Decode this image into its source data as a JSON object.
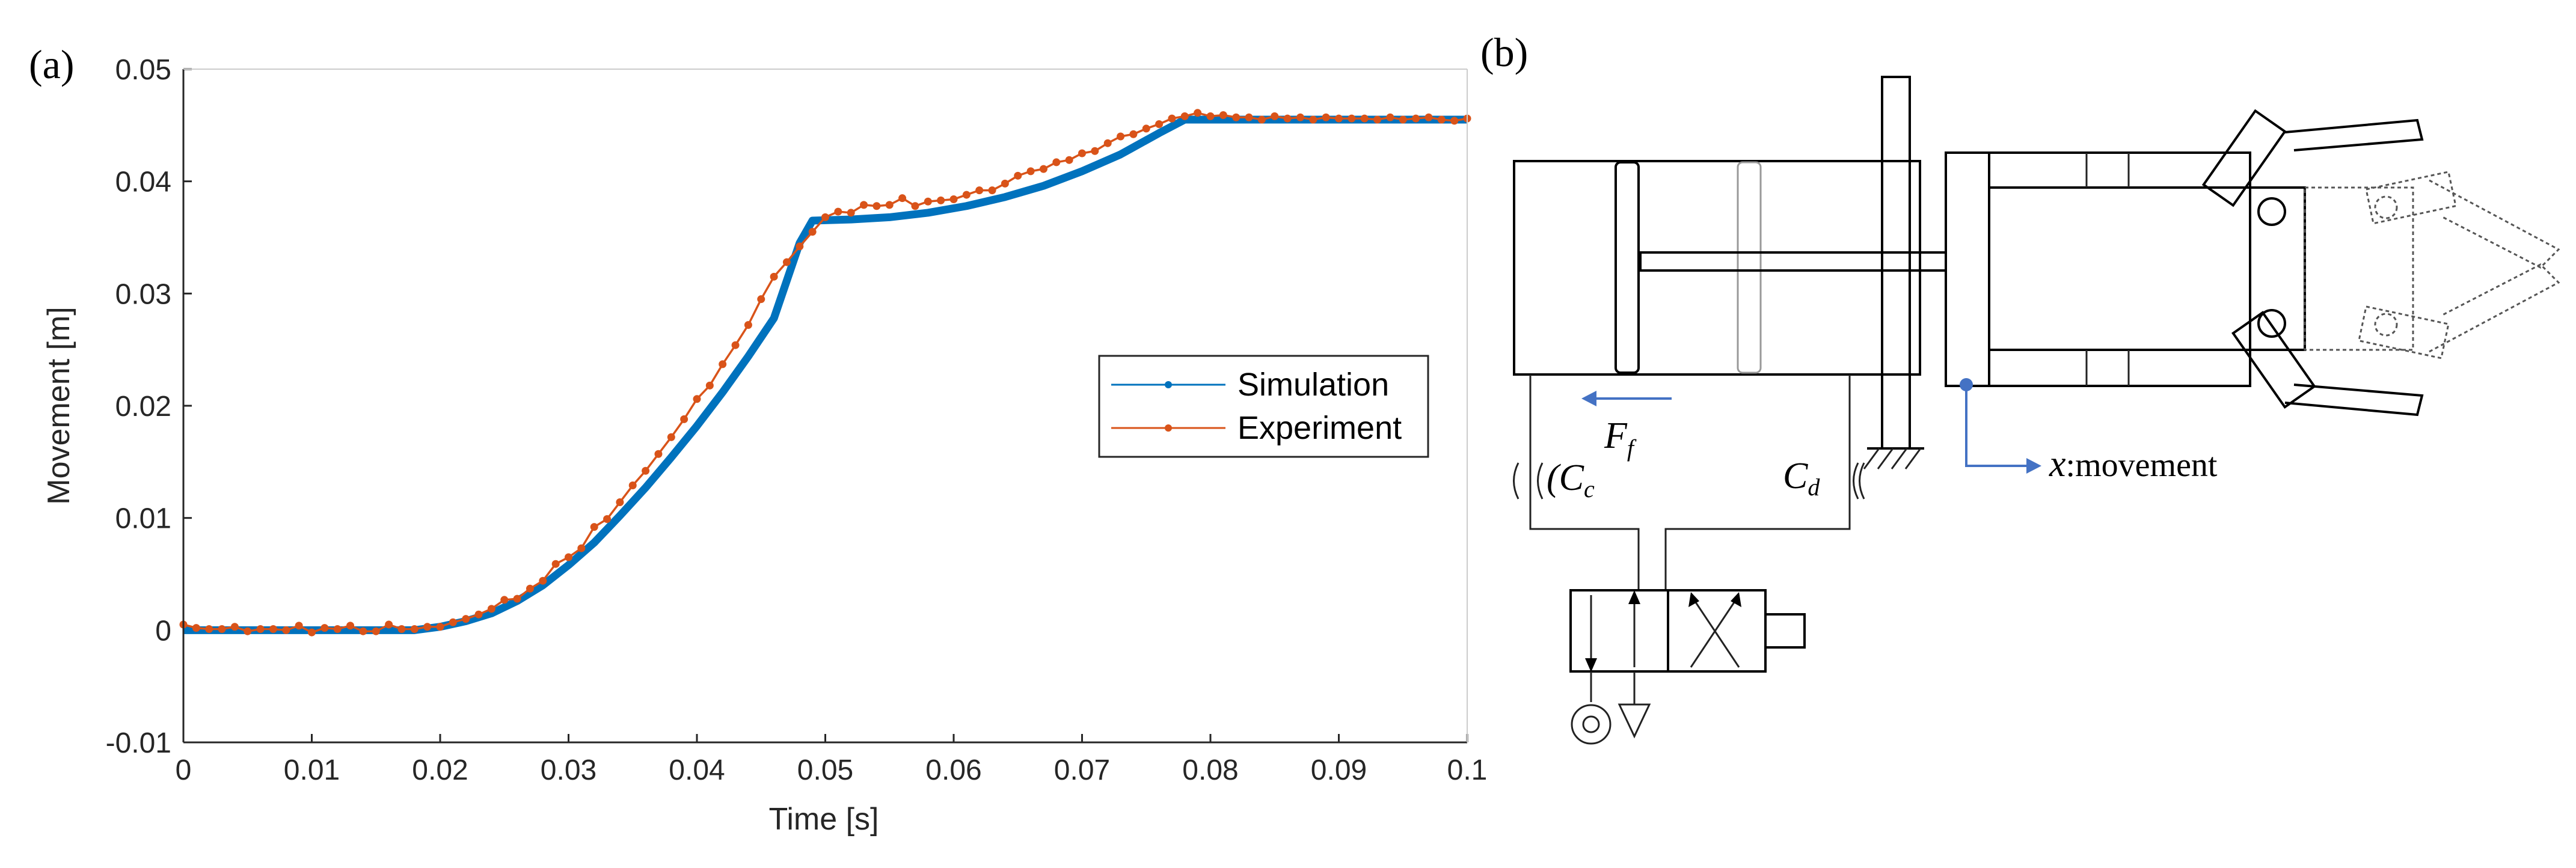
{
  "panel_a_label": "(a)",
  "panel_b_label": "(b)",
  "chart_data": {
    "type": "line",
    "xlabel": "Time [s]",
    "ylabel": "Movement [m]",
    "xlim": [
      0,
      0.1
    ],
    "ylim": [
      -0.01,
      0.05
    ],
    "xticks": [
      "0",
      "0.01",
      "0.02",
      "0.03",
      "0.04",
      "0.05",
      "0.06",
      "0.07",
      "0.08",
      "0.09",
      "0.1"
    ],
    "yticks": [
      "-0.01",
      "0",
      "0.01",
      "0.02",
      "0.03",
      "0.04",
      "0.05"
    ],
    "grid": false,
    "legend_position": "right-middle",
    "series": [
      {
        "name": "Simulation",
        "color": "#0072BD",
        "x": [
          0,
          0.018,
          0.02,
          0.022,
          0.024,
          0.026,
          0.028,
          0.03,
          0.032,
          0.034,
          0.036,
          0.038,
          0.04,
          0.042,
          0.044,
          0.046,
          0.048,
          0.049,
          0.052,
          0.055,
          0.058,
          0.061,
          0.064,
          0.067,
          0.07,
          0.073,
          0.076,
          0.078,
          0.085,
          0.09,
          0.1
        ],
        "y": [
          0,
          0,
          0.0003,
          0.0008,
          0.0015,
          0.0026,
          0.004,
          0.0058,
          0.0078,
          0.0102,
          0.0127,
          0.0154,
          0.0182,
          0.0212,
          0.0244,
          0.0278,
          0.0345,
          0.0365,
          0.0366,
          0.0368,
          0.0372,
          0.0378,
          0.0386,
          0.0396,
          0.0409,
          0.0424,
          0.0443,
          0.0455,
          0.0455,
          0.0455,
          0.0455
        ]
      },
      {
        "name": "Experiment",
        "color": "#D95319",
        "x": [
          0,
          0.001,
          0.002,
          0.003,
          0.004,
          0.005,
          0.006,
          0.007,
          0.008,
          0.009,
          0.01,
          0.011,
          0.012,
          0.013,
          0.014,
          0.015,
          0.016,
          0.017,
          0.018,
          0.019,
          0.02,
          0.021,
          0.022,
          0.023,
          0.024,
          0.025,
          0.026,
          0.027,
          0.028,
          0.029,
          0.03,
          0.031,
          0.032,
          0.033,
          0.034,
          0.035,
          0.036,
          0.037,
          0.038,
          0.039,
          0.04,
          0.041,
          0.042,
          0.043,
          0.044,
          0.045,
          0.046,
          0.047,
          0.048,
          0.049,
          0.05,
          0.051,
          0.052,
          0.053,
          0.054,
          0.055,
          0.056,
          0.057,
          0.058,
          0.059,
          0.06,
          0.061,
          0.062,
          0.063,
          0.064,
          0.065,
          0.066,
          0.067,
          0.068,
          0.069,
          0.07,
          0.071,
          0.072,
          0.073,
          0.074,
          0.075,
          0.076,
          0.077,
          0.078,
          0.079,
          0.08,
          0.081,
          0.082,
          0.083,
          0.084,
          0.085,
          0.086,
          0.087,
          0.088,
          0.089,
          0.09,
          0.091,
          0.092,
          0.093,
          0.094,
          0.095,
          0.096,
          0.097,
          0.098,
          0.099,
          0.1
        ],
        "y": [
          0.0005,
          0.0002,
          0.0001,
          0.0001,
          0.0003,
          -0.0001,
          0.0001,
          0.0001,
          0,
          0.0004,
          -0.0002,
          0.0002,
          0.0001,
          0.0004,
          -0.0001,
          -0.0001,
          0.0005,
          0.0001,
          0.0001,
          0.0003,
          0.0003,
          0.0007,
          0.001,
          0.0014,
          0.0019,
          0.0027,
          0.0028,
          0.0037,
          0.0044,
          0.0059,
          0.0065,
          0.0073,
          0.0092,
          0.0099,
          0.0114,
          0.0129,
          0.0142,
          0.0157,
          0.0172,
          0.0188,
          0.0206,
          0.0218,
          0.0237,
          0.0254,
          0.0272,
          0.0295,
          0.0315,
          0.0328,
          0.0342,
          0.0355,
          0.0368,
          0.0373,
          0.0372,
          0.0379,
          0.0378,
          0.0379,
          0.0385,
          0.0378,
          0.0382,
          0.0383,
          0.0384,
          0.0388,
          0.0392,
          0.0392,
          0.0398,
          0.0405,
          0.0409,
          0.0411,
          0.0417,
          0.0419,
          0.0425,
          0.0427,
          0.0434,
          0.044,
          0.0442,
          0.0447,
          0.0451,
          0.0456,
          0.0458,
          0.0461,
          0.0458,
          0.0459,
          0.0457,
          0.0457,
          0.0455,
          0.0458,
          0.0456,
          0.0457,
          0.0455,
          0.0457,
          0.0456,
          0.0456,
          0.0456,
          0.0455,
          0.0457,
          0.0455,
          0.0456,
          0.0457,
          0.0455,
          0.0454,
          0.0456
        ]
      }
    ]
  },
  "diagram": {
    "force_label": "F",
    "force_sub": "f",
    "orifice_c_label": "C",
    "orifice_c_sub": "c",
    "orifice_d_label": "C",
    "orifice_d_sub": "d",
    "movement_var": "x",
    "movement_text": ":movement",
    "colors": {
      "arrow": "#4472C4"
    }
  }
}
